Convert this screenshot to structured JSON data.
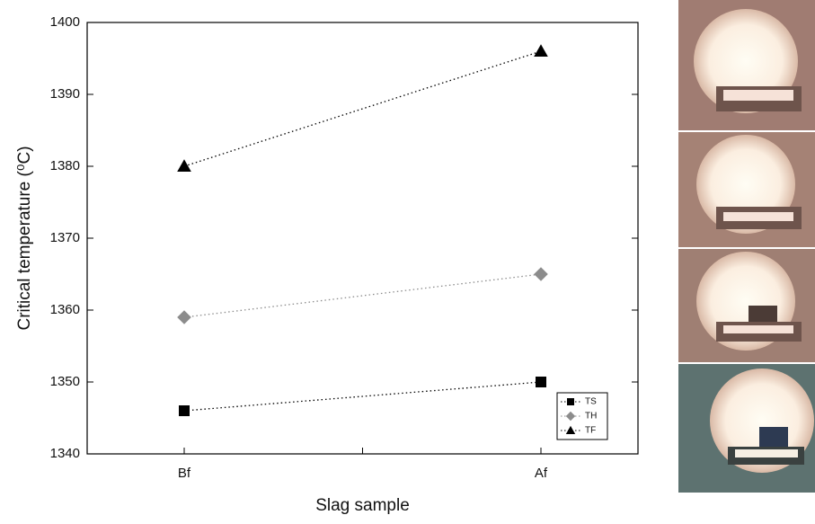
{
  "chart_data": {
    "type": "line",
    "x_label": "Slag sample",
    "y_label": "Critical temperature (⁰C)",
    "categories": [
      "Bf",
      "Af"
    ],
    "series": [
      {
        "name": "TS",
        "color": "#000000",
        "marker": "square",
        "values": [
          1346,
          1350
        ]
      },
      {
        "name": "TH",
        "color": "#8c8c8c",
        "marker": "diamond",
        "values": [
          1359,
          1365
        ]
      },
      {
        "name": "TF",
        "color": "#000000",
        "marker": "triangle",
        "values": [
          1380,
          1396
        ]
      }
    ],
    "ylim": [
      1340,
      1400
    ],
    "yticks": [
      1340,
      1350,
      1360,
      1370,
      1380,
      1390,
      1400
    ],
    "grid": false,
    "legend": "lower right"
  }
}
